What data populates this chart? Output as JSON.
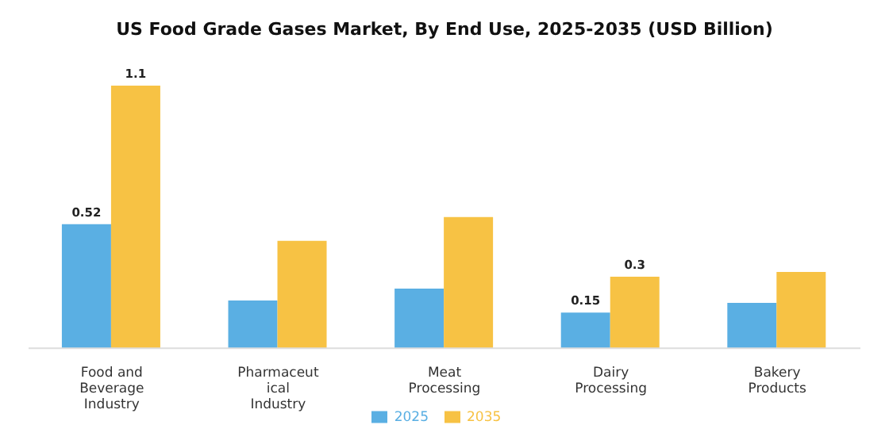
{
  "chart_data": {
    "type": "bar",
    "title": "US Food Grade Gases Market, By End Use, 2025-2035 (USD Billion)",
    "categories": [
      "Food and\nBeverage\nIndustry",
      "Pharmaceut\nical\nIndustry",
      "Meat\nProcessing",
      "Dairy\nProcessing",
      "Bakery\nProducts"
    ],
    "series": [
      {
        "name": "2025",
        "color": "#5aafe3",
        "values": [
          0.52,
          0.2,
          0.25,
          0.15,
          0.19
        ],
        "value_labels": [
          "0.52",
          null,
          null,
          "0.15",
          null
        ]
      },
      {
        "name": "2035",
        "color": "#f7c244",
        "values": [
          1.1,
          0.45,
          0.55,
          0.3,
          0.32
        ],
        "value_labels": [
          "1.1",
          null,
          null,
          "0.3",
          null
        ]
      }
    ],
    "legend": "bottom",
    "grid": false
  }
}
